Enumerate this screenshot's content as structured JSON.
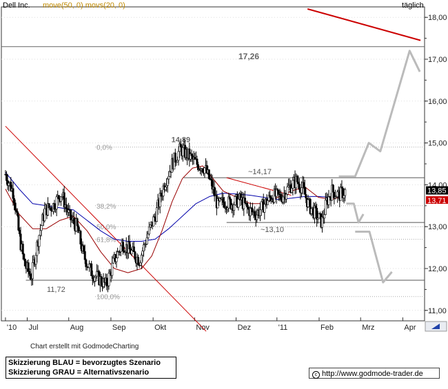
{
  "header": {
    "stock_name": "Dell Inc.",
    "ma_legend": "move(50, 0) movs(20, 0)",
    "period": "täglich"
  },
  "chart_data": {
    "type": "candlestick",
    "y_axis": {
      "min": 10.75,
      "max": 18.25,
      "ticks": [
        11.0,
        12.0,
        13.0,
        14.0,
        15.0,
        16.0,
        17.0,
        18.0
      ],
      "tick_labels": [
        "11,00",
        "12,00",
        "13,00",
        "14,00",
        "15,00",
        "16,00",
        "17,00",
        "18,00"
      ],
      "position": "right"
    },
    "x_axis": {
      "labels": [
        "'10",
        "Jul",
        "Aug",
        "Sep",
        "Okt",
        "Nov",
        "Dez",
        "'11",
        "Feb",
        "Mrz",
        "Apr"
      ],
      "label_days": [
        0,
        32,
        93,
        155,
        217,
        278,
        339,
        399,
        461,
        522,
        584
      ]
    },
    "horizontal_levels": [
      {
        "value": 17.3,
        "label": "17,26"
      },
      {
        "value": 14.17,
        "label": "~14,17"
      },
      {
        "value": 13.1,
        "label": "~13,10"
      },
      {
        "value": 11.72,
        "label": "11,72"
      }
    ],
    "fibonacci": [
      {
        "value": 14.9,
        "label": "0,0%"
      },
      {
        "value": 13.5,
        "label": "38,2%"
      },
      {
        "value": 13.0,
        "label": "50,0%"
      },
      {
        "value": 12.7,
        "label": "61,8%"
      },
      {
        "value": 11.33,
        "label": "100,0%"
      }
    ],
    "peak_labels": [
      {
        "day": 258,
        "value": 14.89,
        "label": "14,89"
      }
    ],
    "last_price": "13,85",
    "last_ma": "13,71",
    "trendlines": [
      {
        "points": [
          [
            0,
            15.4
          ],
          [
            295,
            10.5
          ]
        ],
        "color": "#cc0000"
      },
      {
        "points": [
          [
            325,
            14.17
          ],
          [
            420,
            13.75
          ]
        ],
        "color": "#cc0000"
      },
      {
        "points": [
          [
            444,
            18.2
          ],
          [
            610,
            17.45
          ]
        ],
        "color": "#cc0000"
      }
    ],
    "scenario_path": [
      [
        490,
        14.2
      ],
      [
        514,
        14.2
      ],
      [
        534,
        15.0
      ],
      [
        551,
        14.8
      ],
      [
        594,
        17.2
      ],
      [
        609,
        16.7
      ]
    ],
    "scenario_down": [
      [
        501,
        13.55
      ],
      [
        512,
        13.55
      ],
      [
        519,
        13.1
      ],
      [
        526,
        13.3
      ]
    ],
    "scenario_down2": [
      [
        514,
        12.88
      ],
      [
        535,
        12.88
      ],
      [
        555,
        11.67
      ],
      [
        568,
        11.92
      ]
    ],
    "closes": [
      {
        "day": 0,
        "value": 14.25
      },
      {
        "day": 12,
        "value": 13.8
      },
      {
        "day": 20,
        "value": 12.8
      },
      {
        "day": 28,
        "value": 12.1
      },
      {
        "day": 38,
        "value": 11.8
      },
      {
        "day": 48,
        "value": 12.7
      },
      {
        "day": 58,
        "value": 13.4
      },
      {
        "day": 70,
        "value": 13.5
      },
      {
        "day": 82,
        "value": 13.8
      },
      {
        "day": 95,
        "value": 13.2
      },
      {
        "day": 105,
        "value": 13.0
      },
      {
        "day": 115,
        "value": 12.3
      },
      {
        "day": 127,
        "value": 11.9
      },
      {
        "day": 138,
        "value": 11.75
      },
      {
        "day": 148,
        "value": 11.6
      },
      {
        "day": 160,
        "value": 12.2
      },
      {
        "day": 172,
        "value": 12.6
      },
      {
        "day": 185,
        "value": 12.4
      },
      {
        "day": 197,
        "value": 12.2
      },
      {
        "day": 209,
        "value": 12.8
      },
      {
        "day": 221,
        "value": 13.3
      },
      {
        "day": 233,
        "value": 14.0
      },
      {
        "day": 245,
        "value": 14.5
      },
      {
        "day": 257,
        "value": 14.85
      },
      {
        "day": 269,
        "value": 14.7
      },
      {
        "day": 281,
        "value": 14.5
      },
      {
        "day": 293,
        "value": 14.4
      },
      {
        "day": 303,
        "value": 14.0
      },
      {
        "day": 312,
        "value": 13.5
      },
      {
        "day": 321,
        "value": 13.6
      },
      {
        "day": 333,
        "value": 13.55
      },
      {
        "day": 345,
        "value": 13.65
      },
      {
        "day": 357,
        "value": 13.4
      },
      {
        "day": 369,
        "value": 13.3
      },
      {
        "day": 381,
        "value": 13.55
      },
      {
        "day": 393,
        "value": 13.75
      },
      {
        "day": 405,
        "value": 13.7
      },
      {
        "day": 417,
        "value": 13.95
      },
      {
        "day": 428,
        "value": 14.1
      },
      {
        "day": 437,
        "value": 13.9
      },
      {
        "day": 446,
        "value": 13.5
      },
      {
        "day": 456,
        "value": 13.3
      },
      {
        "day": 465,
        "value": 13.1
      },
      {
        "day": 472,
        "value": 13.6
      },
      {
        "day": 480,
        "value": 13.85
      },
      {
        "day": 490,
        "value": 13.75
      },
      {
        "day": 500,
        "value": 13.85
      }
    ],
    "ma_blue": [
      [
        0,
        14.3
      ],
      [
        20,
        13.9
      ],
      [
        40,
        13.55
      ],
      [
        60,
        13.5
      ],
      [
        80,
        13.45
      ],
      [
        100,
        13.4
      ],
      [
        120,
        13.15
      ],
      [
        140,
        12.9
      ],
      [
        160,
        12.7
      ],
      [
        180,
        12.65
      ],
      [
        200,
        12.65
      ],
      [
        220,
        12.7
      ],
      [
        240,
        12.95
      ],
      [
        260,
        13.25
      ],
      [
        280,
        13.55
      ],
      [
        300,
        13.72
      ],
      [
        320,
        13.8
      ],
      [
        340,
        13.78
      ],
      [
        360,
        13.75
      ],
      [
        380,
        13.7
      ],
      [
        400,
        13.65
      ],
      [
        420,
        13.68
      ],
      [
        440,
        13.72
      ],
      [
        460,
        13.72
      ],
      [
        480,
        13.7
      ],
      [
        500,
        13.71
      ]
    ],
    "ma_red": [
      [
        0,
        13.9
      ],
      [
        20,
        13.3
      ],
      [
        40,
        12.95
      ],
      [
        60,
        12.95
      ],
      [
        80,
        13.15
      ],
      [
        100,
        13.25
      ],
      [
        120,
        12.9
      ],
      [
        140,
        12.4
      ],
      [
        160,
        12.0
      ],
      [
        180,
        11.9
      ],
      [
        200,
        12.0
      ],
      [
        215,
        12.3
      ],
      [
        230,
        12.9
      ],
      [
        245,
        13.6
      ],
      [
        260,
        14.15
      ],
      [
        275,
        14.4
      ],
      [
        290,
        14.45
      ],
      [
        305,
        14.15
      ],
      [
        320,
        13.85
      ],
      [
        340,
        13.7
      ],
      [
        360,
        13.55
      ],
      [
        380,
        13.55
      ],
      [
        400,
        13.7
      ],
      [
        420,
        13.85
      ],
      [
        440,
        13.95
      ],
      [
        460,
        13.7
      ],
      [
        480,
        13.65
      ],
      [
        500,
        13.75
      ]
    ]
  },
  "footer": {
    "credit": "Chart erstellt mit GodmodeCharting",
    "legend_blue": "Skizzierung BLAU = bevorzugtes Szenario",
    "legend_gray": "Skizzierung GRAU = Alternativszenario",
    "url": "http://www.godmode-trader.de",
    "copyright_symbol": "c"
  }
}
